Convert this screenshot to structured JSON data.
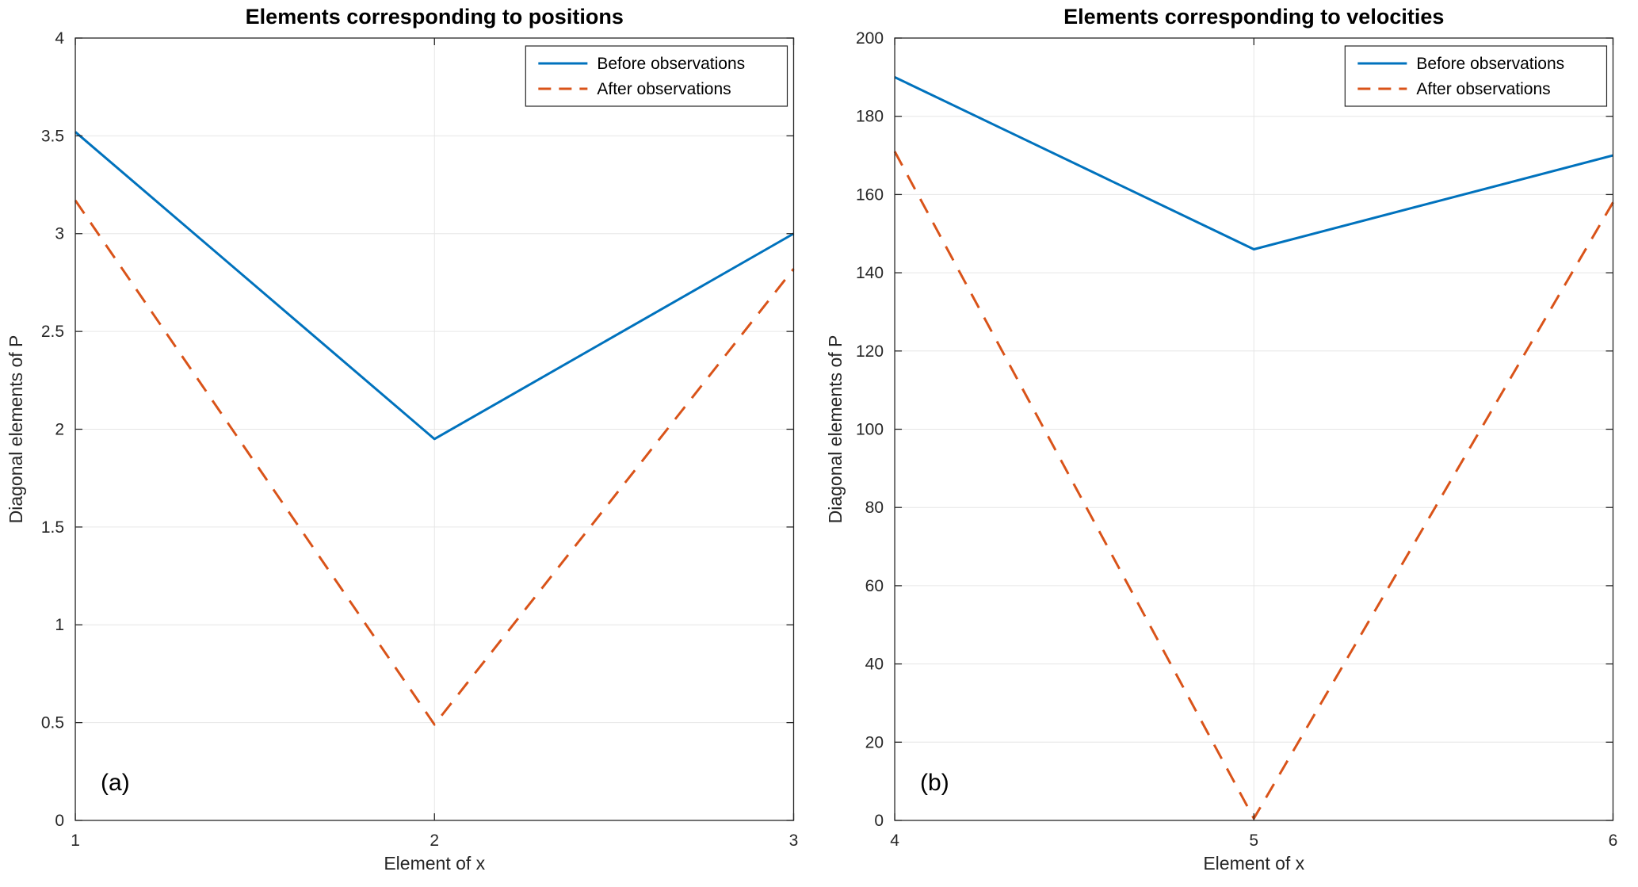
{
  "figure": {
    "background": "#ffffff"
  },
  "style": {
    "grid_color": "#e6e6e6",
    "axis_color": "#262626",
    "line_width": 3,
    "dash_pattern": "20 14",
    "legend_background": "#ffffff",
    "legend_border_color": "#262626"
  },
  "chart_data": [
    {
      "type": "line",
      "title": "Elements corresponding to positions",
      "xlabel": "Element of x",
      "ylabel": "Diagonal elements of P",
      "panel_label": "(a)",
      "x": [
        1,
        2,
        3
      ],
      "xlim": [
        1,
        3
      ],
      "ylim": [
        0,
        4
      ],
      "xticks": [
        1,
        2,
        3
      ],
      "yticks": [
        0,
        0.5,
        1,
        1.5,
        2,
        2.5,
        3,
        3.5,
        4
      ],
      "grid": true,
      "legend_position": "top-right",
      "series": [
        {
          "name": "Before observations",
          "style": "solid",
          "color": "#0072BD",
          "values": [
            3.52,
            1.95,
            3.0
          ]
        },
        {
          "name": "After observations",
          "style": "dashed",
          "color": "#D95319",
          "values": [
            3.17,
            0.49,
            2.82
          ]
        }
      ]
    },
    {
      "type": "line",
      "title": "Elements corresponding to velocities",
      "xlabel": "Element of x",
      "ylabel": "Diagonal elements of P",
      "panel_label": "(b)",
      "x": [
        4,
        5,
        6
      ],
      "xlim": [
        4,
        6
      ],
      "ylim": [
        0,
        200
      ],
      "xticks": [
        4,
        5,
        6
      ],
      "yticks": [
        0,
        20,
        40,
        60,
        80,
        100,
        120,
        140,
        160,
        180,
        200
      ],
      "grid": true,
      "legend_position": "top-right",
      "series": [
        {
          "name": "Before observations",
          "style": "solid",
          "color": "#0072BD",
          "values": [
            190,
            146,
            170
          ]
        },
        {
          "name": "After observations",
          "style": "dashed",
          "color": "#D95319",
          "values": [
            171,
            0.5,
            158
          ]
        }
      ]
    }
  ]
}
